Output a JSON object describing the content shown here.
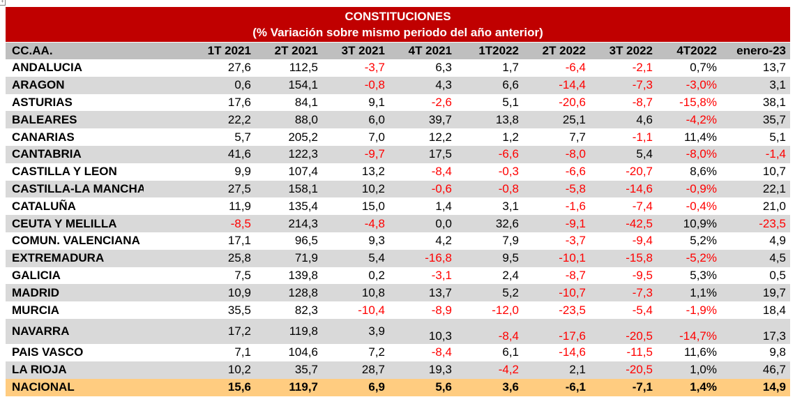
{
  "title": "CONSTITUCIONES",
  "subtitle": "(% Variación sobre mismo periodo del año anterior)",
  "colors": {
    "title_bg": "#c00000",
    "header_bg": "#bfbfbf",
    "stripe": "#d9d9d9",
    "total_bg": "#ffcc80",
    "negative": "#ff0000"
  },
  "headers": [
    "CC.AA.",
    "1T 2021",
    "2T 2021",
    "3T 2021",
    "4T 2021",
    "1T2022",
    "2T 2022",
    "3T 2022",
    "4T2022",
    "enero-23"
  ],
  "rows": [
    {
      "region": "ANDALUCIA",
      "values": [
        "27,6",
        "112,5",
        "-3,7",
        "6,3",
        "1,7",
        "-6,4",
        "-2,1",
        "0,7%",
        "13,7"
      ]
    },
    {
      "region": "ARAGON",
      "values": [
        "0,6",
        "154,1",
        "-0,8",
        "4,3",
        "6,6",
        "-14,4",
        "-7,3",
        "-3,0%",
        "3,1"
      ]
    },
    {
      "region": "ASTURIAS",
      "values": [
        "17,6",
        "84,1",
        "9,1",
        "-2,6",
        "5,1",
        "-20,6",
        "-8,7",
        "-15,8%",
        "38,1"
      ]
    },
    {
      "region": "BALEARES",
      "values": [
        "22,2",
        "88,0",
        "6,0",
        "39,7",
        "13,8",
        "25,1",
        "4,6",
        "-4,2%",
        "35,7"
      ]
    },
    {
      "region": "CANARIAS",
      "values": [
        "5,7",
        "205,2",
        "7,0",
        "12,2",
        "1,2",
        "7,7",
        "-1,1",
        "11,4%",
        "5,1"
      ]
    },
    {
      "region": "CANTABRIA",
      "values": [
        "41,6",
        "122,3",
        "-9,7",
        "17,5",
        "-6,6",
        "-8,0",
        "5,4",
        "-8,0%",
        "-1,4"
      ]
    },
    {
      "region": "CASTILLA Y LEON",
      "values": [
        "9,9",
        "107,4",
        "13,2",
        "-8,4",
        "-0,3",
        "-6,6",
        "-20,7",
        "8,6%",
        "10,7"
      ]
    },
    {
      "region": "CASTILLA-LA MANCHA",
      "values": [
        "27,5",
        "158,1",
        "10,2",
        "-0,6",
        "-0,8",
        "-5,8",
        "-14,6",
        "-0,9%",
        "22,1"
      ]
    },
    {
      "region": "CATALUÑA",
      "values": [
        "11,9",
        "135,4",
        "15,0",
        "1,4",
        "3,1",
        "-1,6",
        "-7,4",
        "-0,4%",
        "21,0"
      ]
    },
    {
      "region": "CEUTA Y MELILLA",
      "values": [
        "-8,5",
        "214,3",
        "-4,8",
        "0,0",
        "32,6",
        "-9,1",
        "-42,5",
        "10,9%",
        "-23,5"
      ]
    },
    {
      "region": "COMUN. VALENCIANA",
      "values": [
        "17,1",
        "96,5",
        "9,3",
        "4,2",
        "7,9",
        "-3,7",
        "-9,4",
        "5,2%",
        "4,9"
      ]
    },
    {
      "region": "EXTREMADURA",
      "values": [
        "25,8",
        "71,9",
        "5,4",
        "-16,8",
        "9,5",
        "-10,1",
        "-15,8",
        "-5,2%",
        "4,5"
      ]
    },
    {
      "region": "GALICIA",
      "values": [
        "7,5",
        "139,8",
        "0,2",
        "-3,1",
        "2,4",
        "-8,7",
        "-9,5",
        "5,3%",
        "0,5"
      ]
    },
    {
      "region": "MADRID",
      "values": [
        "10,9",
        "128,8",
        "10,8",
        "13,7",
        "5,2",
        "-10,7",
        "-7,3",
        "1,1%",
        "19,7"
      ]
    },
    {
      "region": "MURCIA",
      "values": [
        "35,5",
        "82,3",
        "-10,4",
        "-8,9",
        "-12,0",
        "-23,5",
        "-5,4",
        "-1,9%",
        "18,4"
      ]
    },
    {
      "region": "NAVARRA",
      "values": [
        "17,2",
        "119,8",
        "3,9",
        "10,3",
        "-8,4",
        "-17,6",
        "-20,5",
        "-14,7%",
        "17,3"
      ]
    },
    {
      "region": "PAIS VASCO",
      "values": [
        "7,1",
        "104,6",
        "7,2",
        "-8,4",
        "6,1",
        "-14,6",
        "-11,5",
        "11,6%",
        "9,8"
      ]
    },
    {
      "region": "LA RIOJA",
      "values": [
        "10,2",
        "35,7",
        "28,7",
        "19,3",
        "-4,2",
        "2,1",
        "-20,5",
        "1,0%",
        "46,7"
      ]
    }
  ],
  "total": {
    "region": "NACIONAL",
    "values": [
      "15,6",
      "119,7",
      "6,9",
      "5,6",
      "3,6",
      "-6,1",
      "-7,1",
      "1,4%",
      "14,9"
    ]
  }
}
